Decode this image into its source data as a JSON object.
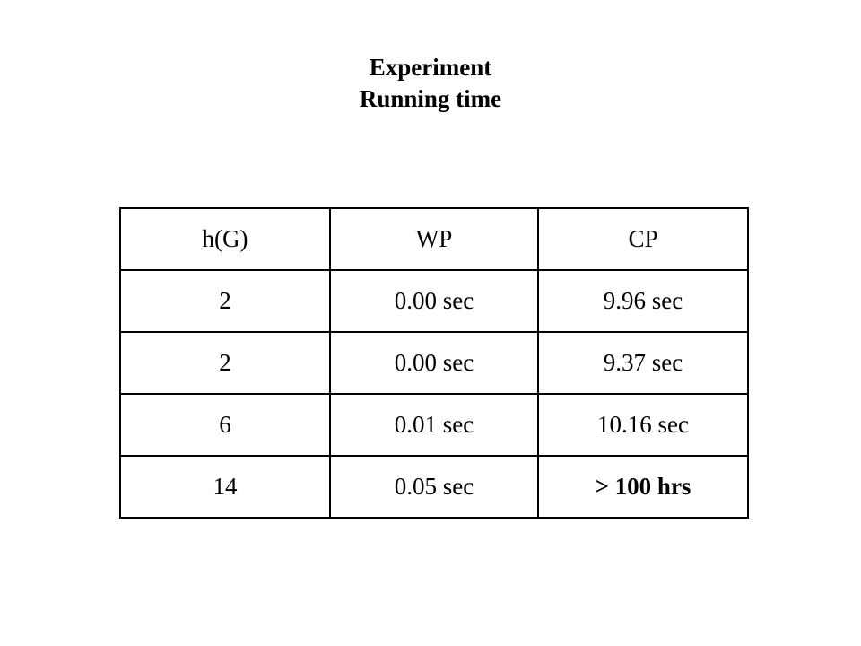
{
  "title": {
    "line1": "Experiment",
    "line2": "Running time"
  },
  "table": {
    "headers": [
      "h(G)",
      "WP",
      "CP"
    ],
    "rows": [
      [
        "2",
        "0.00 sec",
        "9.96 sec"
      ],
      [
        "2",
        "0.00 sec",
        "9.37 sec"
      ],
      [
        "6",
        "0.01 sec",
        "10.16 sec"
      ],
      [
        "14",
        "0.05 sec",
        "> 100 hrs"
      ]
    ],
    "emphasized_cell": "> 100 hrs"
  }
}
